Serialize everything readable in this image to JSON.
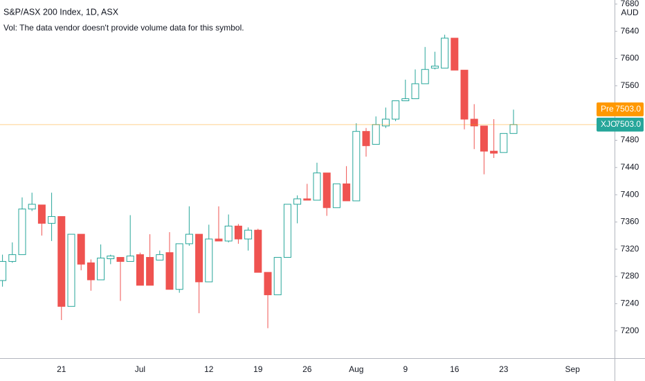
{
  "chart_data": {
    "type": "candlestick",
    "title": "S&P/ASX 200 Index, 1D, ASX",
    "subtitle": "Vol: The data vendor doesn't provide volume data for this symbol.",
    "currency": "AUD",
    "categories": [
      null,
      null,
      null,
      null,
      null,
      null,
      "21",
      null,
      null,
      null,
      null,
      null,
      null,
      null,
      "Jul",
      null,
      null,
      null,
      null,
      null,
      null,
      "12",
      null,
      null,
      null,
      null,
      "19",
      null,
      null,
      null,
      null,
      "26",
      null,
      null,
      null,
      null,
      "Aug",
      null,
      null,
      null,
      null,
      "9",
      null,
      null,
      null,
      null,
      "16",
      null,
      null,
      null,
      null,
      "23",
      null,
      null,
      null,
      null,
      null,
      null,
      "Sep"
    ],
    "open": [
      7274,
      7302,
      7312,
      7379,
      7385,
      7358,
      7368,
      7236,
      7342,
      7300,
      7275,
      7306,
      7308,
      7302,
      7312,
      7308,
      7304,
      7315,
      7261,
      7328,
      7342,
      7272,
      7335,
      7332,
      7354,
      7335,
      7348,
      7286,
      7253,
      7308,
      7386,
      7394,
      7392,
      7432,
      7381,
      7416,
      7391,
      7493,
      7474,
      7501,
      7511,
      7538,
      7541,
      7563,
      7586,
      7586,
      7630,
      7583,
      7511,
      7501,
      7464,
      7462,
      7490,
      null,
      null,
      null,
      null,
      null,
      null
    ],
    "high": [
      7312,
      7330,
      7396,
      7403,
      7385,
      7403,
      7368,
      7342,
      7342,
      7305,
      7327,
      7312,
      7308,
      7370,
      7315,
      7342,
      7318,
      7345,
      7328,
      7383,
      7342,
      7356,
      7383,
      7371,
      7357,
      7352,
      7350,
      7286,
      7308,
      7386,
      7399,
      7416,
      7447,
      7432,
      7416,
      7442,
      7505,
      7498,
      7515,
      7528,
      7538,
      7569,
      7584,
      7617,
      7610,
      7635,
      7630,
      7583,
      7533,
      7501,
      7511,
      7490,
      7525,
      null,
      null,
      null,
      null,
      null,
      null
    ],
    "low": [
      7265,
      7300,
      7312,
      7376,
      7340,
      7332,
      7216,
      7236,
      7289,
      7259,
      7275,
      7298,
      7244,
      7302,
      7267,
      7267,
      7304,
      7261,
      7256,
      7325,
      7226,
      7272,
      7332,
      7330,
      7328,
      7318,
      7286,
      7204,
      7253,
      7308,
      7358,
      7392,
      7392,
      7369,
      7381,
      7391,
      7391,
      7456,
      7474,
      7498,
      7508,
      7538,
      7541,
      7563,
      7584,
      7586,
      7583,
      7496,
      7467,
      7430,
      7454,
      7462,
      7490,
      null,
      null,
      null,
      null,
      null,
      null
    ],
    "close": [
      7302,
      7312,
      7379,
      7386,
      7358,
      7368,
      7236,
      7342,
      7298,
      7275,
      7307,
      7310,
      7302,
      7310,
      7267,
      7267,
      7312,
      7261,
      7328,
      7342,
      7272,
      7335,
      7332,
      7354,
      7335,
      7348,
      7286,
      7253,
      7308,
      7386,
      7394,
      7392,
      7432,
      7381,
      7416,
      7391,
      7493,
      7472,
      7503,
      7511,
      7538,
      7541,
      7563,
      7584,
      7589,
      7630,
      7583,
      7511,
      7501,
      7464,
      7461,
      7490,
      7503,
      null,
      null,
      null,
      null,
      null,
      null
    ],
    "up_color": "#26a69a",
    "down_color": "#ef5350",
    "ylim": [
      7160,
      7686
    ],
    "yticks": [
      7200,
      7240,
      7280,
      7320,
      7360,
      7400,
      7440,
      7480,
      7520,
      7560,
      7600,
      7640,
      7680
    ],
    "price_lines": [
      {
        "name": "Pre",
        "value": 7503,
        "value_label": "7503.0",
        "color": "#ff9800"
      },
      {
        "name": "XJO",
        "value": 7503,
        "value_label": "7503.0",
        "color": "#26a69a"
      }
    ]
  }
}
